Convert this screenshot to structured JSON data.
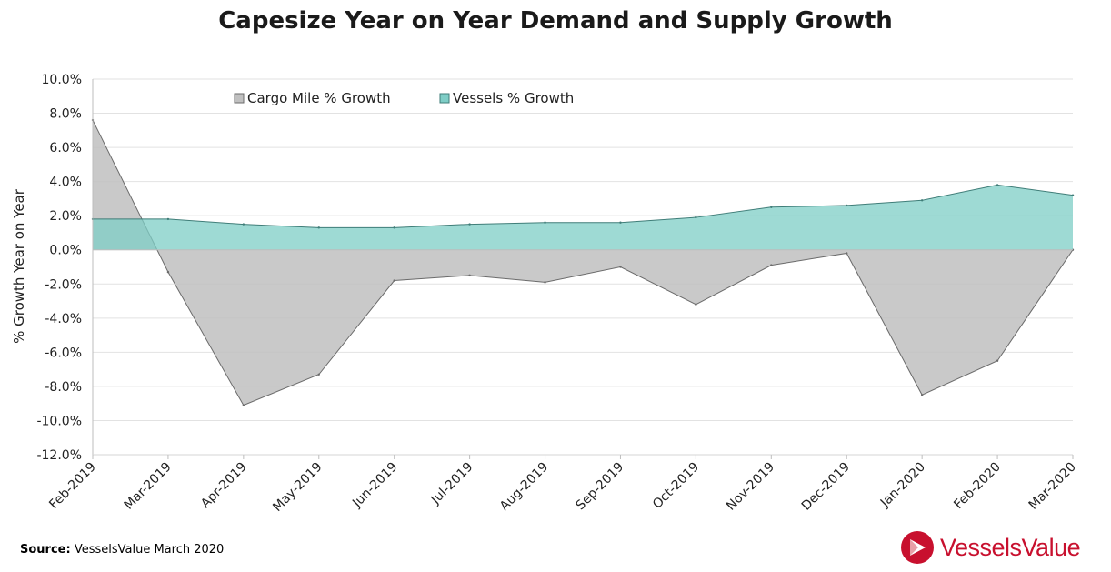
{
  "chart_data": {
    "type": "area",
    "title": "Capesize Year on Year Demand and Supply Growth",
    "ylabel": "% Growth Year on Year",
    "xlabel": "",
    "ylim": [
      -12,
      10
    ],
    "yticks": [
      10,
      8,
      6,
      4,
      2,
      0,
      -2,
      -4,
      -6,
      -8,
      -10,
      -12
    ],
    "ytick_labels": [
      "10.0%",
      "8.0%",
      "6.0%",
      "4.0%",
      "2.0%",
      "0.0%",
      "-2.0%",
      "-4.0%",
      "-6.0%",
      "-8.0%",
      "-10.0%",
      "-12.0%"
    ],
    "categories": [
      "Feb-2019",
      "Mar-2019",
      "Apr-2019",
      "May-2019",
      "Jun-2019",
      "Jul-2019",
      "Aug-2019",
      "Sep-2019",
      "Oct-2019",
      "Nov-2019",
      "Dec-2019",
      "Jan-2020",
      "Feb-2020",
      "Mar-2020"
    ],
    "series": [
      {
        "name": "Cargo Mile % Growth",
        "color": "#c0c0c0",
        "values": [
          7.6,
          -1.3,
          -9.1,
          -7.3,
          -1.8,
          -1.5,
          -1.9,
          -1.0,
          -3.2,
          -0.9,
          -0.2,
          -8.5,
          -6.5,
          0.0
        ]
      },
      {
        "name": "Vessels % Growth",
        "color": "#7ecdc6",
        "values": [
          1.8,
          1.8,
          1.5,
          1.3,
          1.3,
          1.5,
          1.6,
          1.6,
          1.9,
          2.5,
          2.6,
          2.9,
          3.8,
          3.2
        ]
      }
    ],
    "grid": true,
    "legend_position": "top"
  },
  "source": {
    "label": "Source:",
    "text": "VesselsValue March 2020"
  },
  "brand": {
    "name": "VesselsValue",
    "color": "#c8102e",
    "icon": "vesselsvalue-logo-icon"
  }
}
